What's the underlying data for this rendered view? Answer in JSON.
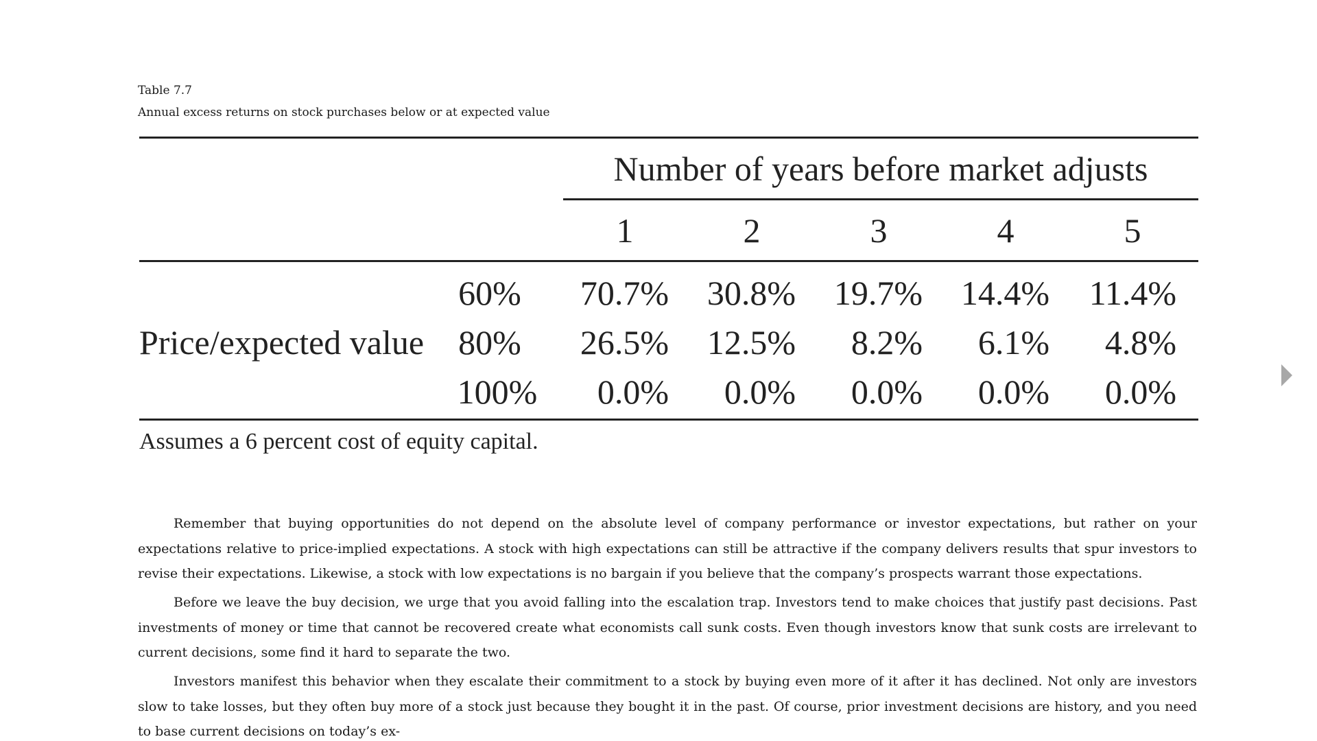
{
  "table": {
    "label": "Table 7.7",
    "caption": "Annual excess returns on stock purchases below or at expected value",
    "column_group_title": "Number of years before market adjusts",
    "years": [
      "1",
      "2",
      "3",
      "4",
      "5"
    ],
    "row_group_label": "Price/expected value",
    "rows": [
      {
        "ratio": "60%",
        "values": [
          "70.7%",
          "30.8%",
          "19.7%",
          "14.4%",
          "11.4%"
        ]
      },
      {
        "ratio": "80%",
        "values": [
          "26.5%",
          "12.5%",
          "8.2%",
          "6.1%",
          "4.8%"
        ]
      },
      {
        "ratio": "100%",
        "values": [
          "0.0%",
          "0.0%",
          "0.0%",
          "0.0%",
          "0.0%"
        ]
      }
    ],
    "footnote": "Assumes a 6 percent cost of equity capital."
  },
  "body": {
    "paragraphs": [
      "Remember that buying opportunities do not depend on the absolute level of company performance or investor expectations, but rather on your expectations relative to price-implied expectations. A stock with high expectations can still be attractive if the company delivers results that spur investors to revise their expectations. Likewise, a stock with low expectations is no bargain if you believe that the company’s prospects warrant those expectations.",
      "Before we leave the buy decision, we urge that you avoid falling into the escalation trap. Investors tend to make choices that justify past decisions. Past investments of money or time that cannot be recovered create what economists call sunk costs. Even though investors know that sunk costs are irrelevant to current decisions, some find it hard to sepa­rate the two.",
      "Investors manifest this behavior when they escalate their commitment to a stock by buying even more of it after it has declined. Not only are investors slow to take losses, but they often buy more of a stock just because they bought it in the past. Of course, prior investment decisions are history, and you need to base current decisions on today’s ex-"
    ]
  },
  "navigation": {
    "next_icon": "chevron-right-icon"
  }
}
